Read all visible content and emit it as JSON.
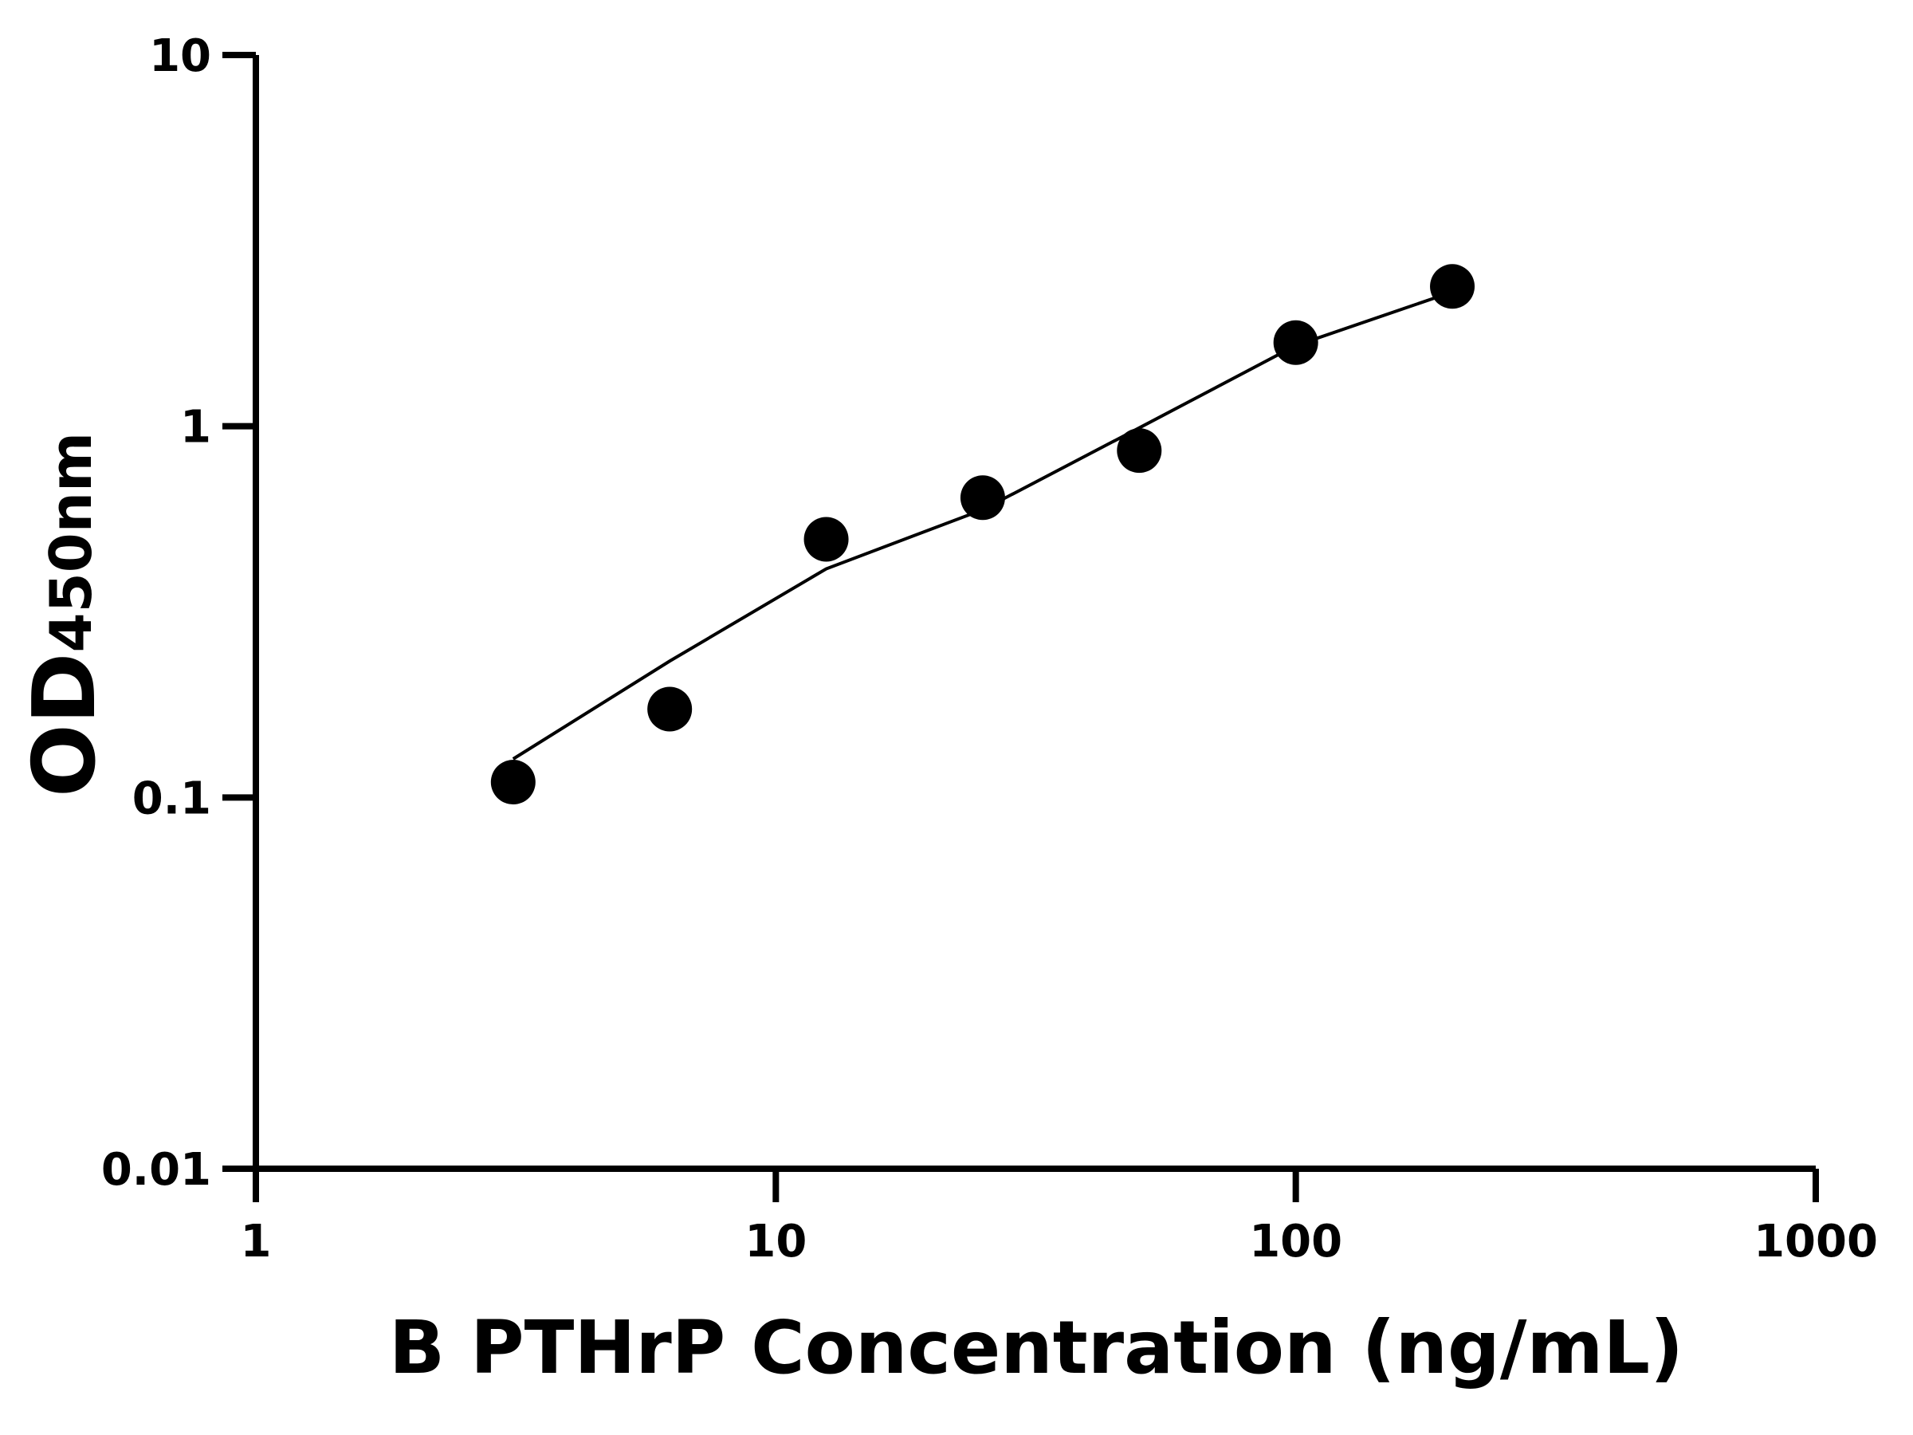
{
  "chart_data": {
    "type": "scatter",
    "x_label": "B PTHrP Concentration (ng/mL)",
    "y_label": "OD",
    "y_label_sub": "450nm",
    "log_x": true,
    "log_y": true,
    "xlim": [
      1,
      1000
    ],
    "xticks": [
      1,
      10,
      100,
      1000
    ],
    "ylim": [
      0.01,
      10
    ],
    "yticks": [
      0.01,
      0.1,
      1,
      10
    ],
    "series": [
      {
        "color": "#000000",
        "mode": "markers",
        "x": [
          3.125,
          6.25,
          12.5,
          25,
          50,
          100,
          200
        ],
        "values": [
          0.11,
          0.173,
          0.496,
          0.642,
          0.86,
          1.68,
          2.38
        ]
      },
      {
        "color": "#000000",
        "mode": "line",
        "x": [
          3.125,
          6.25,
          12.5,
          25,
          50,
          100,
          200
        ],
        "values": [
          0.127,
          0.233,
          0.413,
          0.596,
          0.99,
          1.65,
          2.3
        ]
      }
    ]
  }
}
